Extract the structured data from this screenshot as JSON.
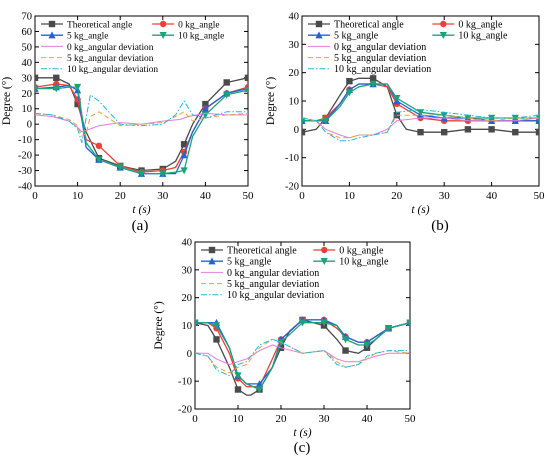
{
  "colors": {
    "theoretical": "#4a4a4a",
    "kg0": "#e8413a",
    "kg5": "#1f63d6",
    "kg10": "#1aa37a",
    "dev0": "#e27be0",
    "dev5": "#e8a33a",
    "dev10": "#22b6d6"
  },
  "chart_data": [
    {
      "panel_label": "(a)",
      "type": "line",
      "xlabel": "t (s)",
      "ylabel": "Degree (°)",
      "xlim": [
        0,
        50
      ],
      "ylim": [
        -40,
        70
      ],
      "xticks": [
        0,
        10,
        20,
        30,
        40,
        50
      ],
      "yticks": [
        -40,
        -30,
        -20,
        -10,
        0,
        10,
        20,
        30,
        40,
        50,
        60,
        70
      ],
      "xtick_labels": [
        "0",
        "10",
        "20",
        "30",
        "40",
        "50"
      ],
      "ytick_labels": [
        "-40",
        "-30",
        "-20",
        "-10",
        "0",
        "10",
        "20",
        "30",
        "40",
        "50",
        "60",
        "70"
      ],
      "legend_position": "top",
      "series": [
        {
          "name": "Theoretical angle",
          "style": "theoretical",
          "marker": "square",
          "x": [
            0,
            5,
            8,
            10,
            12,
            15,
            20,
            25,
            30,
            33,
            35,
            37,
            40,
            45,
            50
          ],
          "y": [
            30,
            30,
            26,
            13,
            -5,
            -22,
            -27,
            -30,
            -29,
            -24,
            -13,
            0,
            13,
            27,
            30
          ]
        },
        {
          "name": "0 kg_angle",
          "style": "kg0",
          "marker": "circle",
          "x": [
            0,
            5,
            8,
            10,
            12,
            15,
            20,
            25,
            30,
            33,
            35,
            37,
            40,
            45,
            50
          ],
          "y": [
            24,
            26,
            25,
            16,
            -10,
            -14,
            -27,
            -31,
            -30,
            -28,
            -18,
            -5,
            10,
            20,
            24
          ]
        },
        {
          "name": "5 kg_angle",
          "style": "kg5",
          "marker": "triangle",
          "x": [
            0,
            5,
            8,
            10,
            12,
            15,
            20,
            25,
            30,
            33,
            35,
            37,
            40,
            45,
            50
          ],
          "y": [
            23,
            24,
            25,
            22,
            -15,
            -23,
            -28,
            -32,
            -32,
            -32,
            -20,
            -5,
            10,
            20,
            23
          ]
        },
        {
          "name": "10 kg_angle",
          "style": "kg10",
          "marker": "triangle-down",
          "x": [
            0,
            5,
            8,
            10,
            12,
            15,
            20,
            25,
            30,
            33,
            35,
            37,
            40,
            45,
            50
          ],
          "y": [
            23,
            23,
            24,
            24,
            -12,
            -23,
            -28,
            -32,
            -32,
            -31,
            -30,
            -8,
            6,
            19,
            22
          ]
        },
        {
          "name": "0 kg_angular deviation",
          "style": "dev0",
          "marker": "none",
          "x": [
            0,
            4,
            8,
            10,
            11,
            12,
            15,
            20,
            25,
            30,
            34,
            36,
            40,
            45,
            50
          ],
          "y": [
            6,
            5,
            2,
            -2,
            -5,
            -4,
            -1,
            1,
            0,
            2,
            3,
            5,
            7,
            6,
            6
          ]
        },
        {
          "name": "5 kg_angular deviation",
          "style": "dev5",
          "marker": "none",
          "x": [
            0,
            4,
            8,
            10,
            11,
            12,
            13,
            15,
            20,
            25,
            30,
            33,
            35,
            37,
            40,
            45,
            50
          ],
          "y": [
            7,
            6,
            3,
            -1,
            -8,
            -6,
            5,
            8,
            -1,
            0,
            1,
            5,
            8,
            2,
            4,
            6,
            7
          ]
        },
        {
          "name": "10 kg_angular deviation",
          "style": "dev10",
          "marker": "none",
          "x": [
            0,
            4,
            8,
            10,
            11,
            12,
            13,
            15,
            20,
            25,
            30,
            33,
            35,
            37,
            40,
            45,
            50
          ],
          "y": [
            7,
            6,
            2,
            -3,
            -12,
            4,
            19,
            15,
            0,
            -1,
            0,
            6,
            15,
            6,
            4,
            8,
            8
          ]
        }
      ]
    },
    {
      "panel_label": "(b)",
      "type": "line",
      "xlabel": "t (s)",
      "ylabel": "Degree (°)",
      "xlim": [
        0,
        50
      ],
      "ylim": [
        -20,
        40
      ],
      "xticks": [
        0,
        10,
        20,
        30,
        40,
        50
      ],
      "yticks": [
        -20,
        -10,
        0,
        10,
        20,
        30,
        40
      ],
      "xtick_labels": [
        "0",
        "10",
        "20",
        "30",
        "40",
        "50"
      ],
      "ytick_labels": [
        "-20",
        "-10",
        "0",
        "10",
        "20",
        "30",
        "40"
      ],
      "legend_position": "top",
      "series": [
        {
          "name": "Theoretical angle",
          "style": "theoretical",
          "marker": "square",
          "x": [
            0,
            3,
            5,
            8,
            10,
            12,
            15,
            18,
            20,
            22,
            25,
            30,
            35,
            40,
            45,
            50
          ],
          "y": [
            -1,
            0,
            4,
            12,
            17,
            18,
            18,
            15,
            5,
            0,
            -1,
            -1,
            0,
            0,
            -1,
            -1
          ]
        },
        {
          "name": "0 kg_angle",
          "style": "kg0",
          "marker": "circle",
          "x": [
            0,
            3,
            5,
            8,
            10,
            12,
            15,
            18,
            20,
            25,
            30,
            35,
            40,
            45,
            50
          ],
          "y": [
            3,
            3,
            4,
            9,
            14,
            16,
            16,
            15,
            9,
            4,
            3,
            3,
            3,
            3,
            3
          ]
        },
        {
          "name": "5 kg_angle",
          "style": "kg5",
          "marker": "triangle",
          "x": [
            0,
            3,
            5,
            8,
            10,
            12,
            15,
            18,
            20,
            25,
            30,
            35,
            40,
            45,
            50
          ],
          "y": [
            3,
            3,
            3,
            9,
            14,
            16,
            16,
            16,
            10,
            5,
            4,
            4,
            3,
            3,
            3
          ]
        },
        {
          "name": "10 kg_angle",
          "style": "kg10",
          "marker": "triangle-down",
          "x": [
            0,
            3,
            5,
            8,
            10,
            12,
            15,
            18,
            20,
            25,
            30,
            35,
            40,
            45,
            50
          ],
          "y": [
            3,
            3,
            3,
            8,
            13,
            15,
            16,
            16,
            11,
            6,
            5,
            4,
            4,
            4,
            4
          ]
        },
        {
          "name": "0 kg_angular deviation",
          "style": "dev0",
          "marker": "none",
          "x": [
            0,
            3,
            5,
            8,
            10,
            12,
            15,
            18,
            20,
            25,
            30,
            35,
            40,
            45,
            50
          ],
          "y": [
            4,
            3,
            0,
            -2,
            -3,
            -2,
            -2,
            0,
            3,
            4,
            4,
            3,
            3,
            3,
            4
          ]
        },
        {
          "name": "5 kg_angular deviation",
          "style": "dev5",
          "marker": "none",
          "x": [
            0,
            3,
            5,
            8,
            10,
            12,
            15,
            18,
            20,
            25,
            30,
            35,
            40,
            45,
            50
          ],
          "y": [
            4,
            3,
            -1,
            -3,
            -3,
            -2,
            -2,
            -1,
            5,
            5,
            5,
            4,
            3,
            4,
            4
          ]
        },
        {
          "name": "10 kg_angular deviation",
          "style": "dev10",
          "marker": "none",
          "x": [
            0,
            3,
            5,
            8,
            10,
            12,
            15,
            18,
            20,
            25,
            30,
            35,
            40,
            45,
            50
          ],
          "y": [
            4,
            3,
            -1,
            -4,
            -4,
            -3,
            -2,
            -1,
            6,
            7,
            6,
            5,
            4,
            4,
            5
          ]
        }
      ]
    },
    {
      "panel_label": "(c)",
      "type": "line",
      "xlabel": "t (s)",
      "ylabel": "Degree (°)",
      "xlim": [
        0,
        50
      ],
      "ylim": [
        -20,
        40
      ],
      "xticks": [
        0,
        10,
        20,
        30,
        40,
        50
      ],
      "yticks": [
        -20,
        -10,
        0,
        10,
        20,
        30,
        40
      ],
      "xtick_labels": [
        "0",
        "10",
        "20",
        "30",
        "40",
        "50"
      ],
      "ytick_labels": [
        "-20",
        "-10",
        "0",
        "10",
        "20",
        "30",
        "40"
      ],
      "legend_position": "top",
      "series": [
        {
          "name": "Theoretical angle",
          "style": "theoretical",
          "marker": "square",
          "x": [
            0,
            3,
            5,
            8,
            10,
            12,
            13,
            15,
            18,
            20,
            22,
            25,
            30,
            33,
            35,
            38,
            40,
            42,
            45,
            50
          ],
          "y": [
            11,
            10,
            5,
            -5,
            -13,
            -15,
            -15,
            -13,
            -5,
            2,
            8,
            12,
            10,
            5,
            1,
            0,
            2,
            5,
            9,
            11
          ]
        },
        {
          "name": "0 kg_angle",
          "style": "kg0",
          "marker": "circle",
          "x": [
            0,
            3,
            5,
            8,
            10,
            12,
            15,
            18,
            20,
            25,
            30,
            33,
            35,
            38,
            40,
            42,
            45,
            50
          ],
          "y": [
            11,
            11,
            9,
            0,
            -9,
            -12,
            -12,
            -2,
            5,
            12,
            12,
            9,
            6,
            4,
            4,
            6,
            9,
            11
          ]
        },
        {
          "name": "5 kg_angle",
          "style": "kg5",
          "marker": "triangle",
          "x": [
            0,
            3,
            5,
            8,
            10,
            12,
            15,
            18,
            20,
            25,
            30,
            33,
            35,
            38,
            40,
            42,
            45,
            50
          ],
          "y": [
            11,
            11,
            11,
            2,
            -8,
            -11,
            -11,
            -5,
            5,
            12,
            12,
            10,
            6,
            4,
            4,
            6,
            9,
            11
          ]
        },
        {
          "name": "10 kg_angle",
          "style": "kg10",
          "marker": "triangle-down",
          "x": [
            0,
            3,
            5,
            8,
            10,
            12,
            15,
            18,
            20,
            25,
            30,
            33,
            35,
            38,
            40,
            42,
            45,
            50
          ],
          "y": [
            11,
            11,
            10,
            2,
            -8,
            -11,
            -13,
            -5,
            4,
            11,
            11,
            10,
            5,
            3,
            3,
            5,
            9,
            11
          ]
        },
        {
          "name": "0 kg_angular deviation",
          "style": "dev0",
          "marker": "none",
          "x": [
            0,
            3,
            5,
            8,
            10,
            12,
            15,
            18,
            20,
            25,
            30,
            33,
            35,
            38,
            40,
            42,
            45,
            50
          ],
          "y": [
            0,
            0,
            -2,
            -4,
            -3,
            -2,
            1,
            3,
            2,
            0,
            1,
            -2,
            -3,
            -3,
            -2,
            -1,
            0,
            0
          ]
        },
        {
          "name": "5 kg_angular deviation",
          "style": "dev5",
          "marker": "none",
          "x": [
            0,
            3,
            5,
            8,
            10,
            12,
            15,
            18,
            20,
            25,
            30,
            33,
            35,
            38,
            40,
            42,
            45,
            50
          ],
          "y": [
            0,
            -1,
            -5,
            -7,
            -5,
            -4,
            2,
            5,
            4,
            0,
            1,
            -3,
            -5,
            -4,
            -2,
            0,
            1,
            0
          ]
        },
        {
          "name": "10 kg_angular deviation",
          "style": "dev10",
          "marker": "none",
          "x": [
            0,
            3,
            5,
            8,
            10,
            12,
            15,
            18,
            20,
            25,
            30,
            33,
            35,
            38,
            40,
            42,
            45,
            50
          ],
          "y": [
            0,
            -1,
            -6,
            -8,
            -4,
            -3,
            3,
            5,
            4,
            0,
            1,
            -4,
            -5,
            -4,
            -1,
            0,
            1,
            1
          ]
        }
      ]
    }
  ]
}
